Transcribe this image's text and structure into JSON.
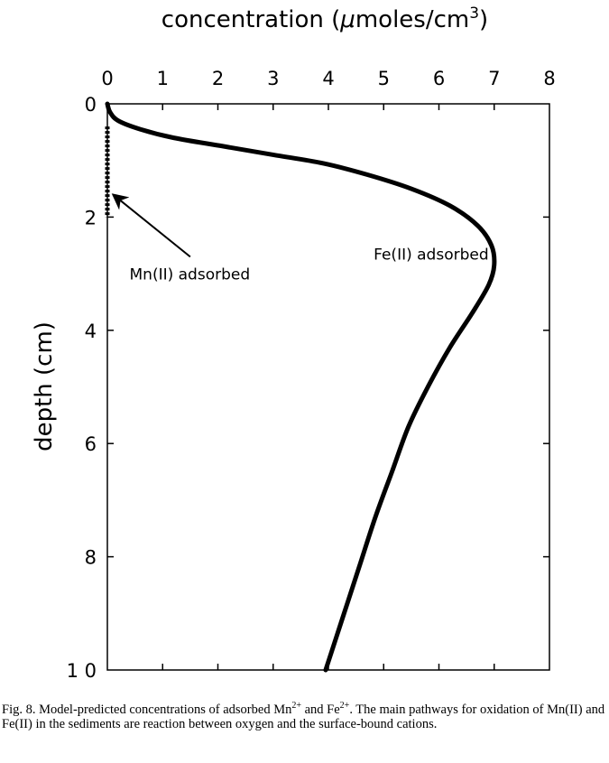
{
  "chart_data": {
    "type": "line",
    "xlabel_prefix": "concentration  (",
    "xlabel_mu": "μ",
    "xlabel_mid": "moles/cm",
    "xlabel_sup": "3",
    "xlabel_suffix": ")",
    "ylabel": "depth (cm)",
    "xlim": [
      0,
      8
    ],
    "ylim": [
      0,
      10
    ],
    "x_ticks": [
      "0",
      "1",
      "2",
      "3",
      "4",
      "5",
      "6",
      "7",
      "8"
    ],
    "y_ticks": [
      "0",
      "2",
      "4",
      "6",
      "8",
      "1 0"
    ],
    "x_axis_position": "top",
    "y_inverted": true,
    "grid": false,
    "series": [
      {
        "name": "Fe(II) adsorbed",
        "style": "solid",
        "points": [
          [
            0.0,
            0.0
          ],
          [
            0.05,
            0.15
          ],
          [
            0.2,
            0.3
          ],
          [
            0.6,
            0.45
          ],
          [
            1.2,
            0.6
          ],
          [
            2.1,
            0.75
          ],
          [
            3.0,
            0.9
          ],
          [
            3.9,
            1.05
          ],
          [
            4.7,
            1.25
          ],
          [
            5.5,
            1.5
          ],
          [
            6.2,
            1.8
          ],
          [
            6.7,
            2.15
          ],
          [
            6.95,
            2.5
          ],
          [
            7.0,
            2.85
          ],
          [
            6.9,
            3.2
          ],
          [
            6.6,
            3.7
          ],
          [
            6.2,
            4.3
          ],
          [
            5.8,
            5.0
          ],
          [
            5.45,
            5.7
          ],
          [
            5.15,
            6.5
          ],
          [
            4.85,
            7.3
          ],
          [
            4.55,
            8.2
          ],
          [
            4.25,
            9.1
          ],
          [
            3.95,
            10.0
          ]
        ]
      },
      {
        "name": "Mn(II) adsorbed",
        "style": "dotted",
        "points": [
          [
            0.0,
            0.4
          ],
          [
            0.0,
            0.8
          ],
          [
            0.0,
            1.2
          ],
          [
            0.0,
            1.6
          ],
          [
            0.0,
            2.0
          ]
        ]
      }
    ],
    "annotations": [
      {
        "text": "Fe(II) adsorbed",
        "x": 6.9,
        "y": 2.75
      },
      {
        "text": "Mn(II) adsorbed",
        "x": 0.4,
        "y": 3.1,
        "arrow_to": [
          0.1,
          1.6
        ]
      }
    ]
  },
  "caption": "Fig. 8.  Model-predicted concentrations of adsorbed Mn2+ and Fe2+. The main pathways for oxidation of Mn(II) and Fe(II) in the sediments are reaction between oxygen and the surface-bound cations.",
  "caption_parts": {
    "p1": "Fig. 8.  Model-predicted concentrations of adsorbed Mn",
    "sup1": "2+",
    "p2": " and Fe",
    "sup2": "2+",
    "p3": ". The main pathways for oxidation of Mn(II) and Fe(II) in the sediments are reaction between oxygen and the surface-bound cations."
  }
}
